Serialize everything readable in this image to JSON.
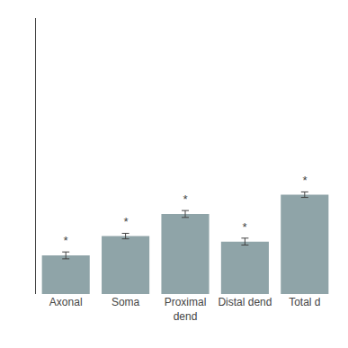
{
  "chart_data": {
    "type": "bar",
    "categories": [
      "Axonal",
      "Soma",
      "Proximal\ndend",
      "Distal dend",
      "Total d"
    ],
    "values": [
      28,
      42,
      58,
      38,
      72
    ],
    "errors": [
      2.5,
      2.0,
      2.5,
      2.5,
      2.0
    ],
    "annotations": [
      "*",
      "*",
      "*",
      "*",
      "*"
    ],
    "color": "#8fa4a8",
    "ylim": [
      0,
      200
    ],
    "grid": false,
    "tick_labels": "x"
  }
}
